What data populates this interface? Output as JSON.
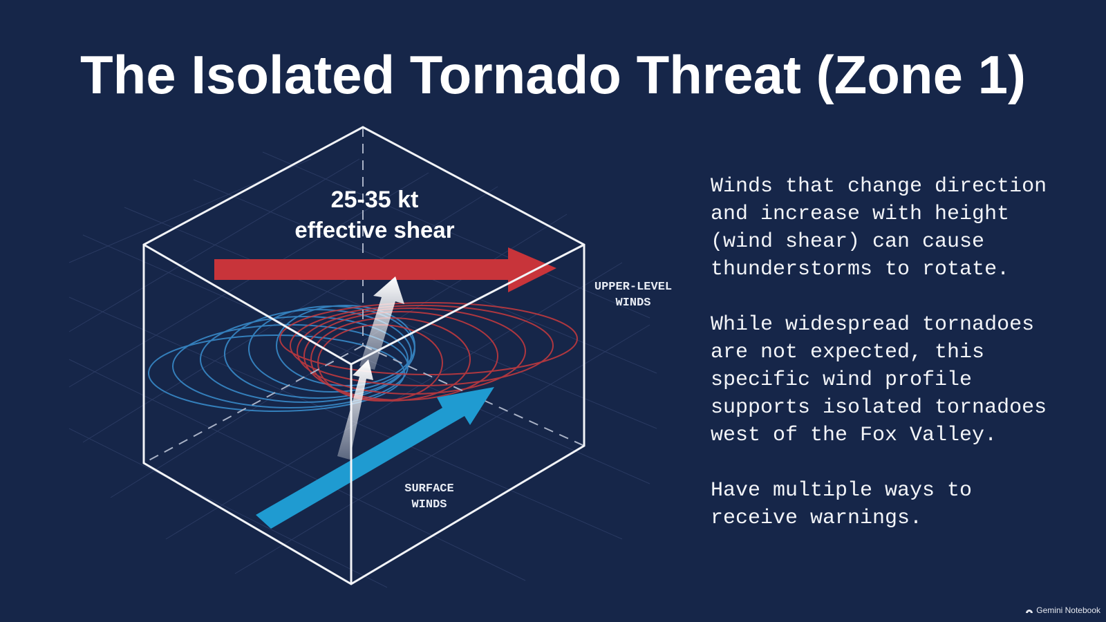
{
  "title": "The Isolated Tornado Threat (Zone 1)",
  "diagram": {
    "shear_value": "25-35 kt",
    "shear_label": "effective shear",
    "upper_label": [
      "UPPER-LEVEL",
      "WINDS"
    ],
    "surface_label": [
      "SURFACE",
      "WINDS"
    ]
  },
  "paragraphs": [
    "Winds that change direction and increase with height (wind shear) can cause thunderstorms to rotate.",
    "While widespread tornadoes are not expected, this specific wind profile supports isolated tornadoes west of the Fox Valley.",
    "Have multiple ways to receive warnings."
  ],
  "footer": "Gemini Notebook"
}
